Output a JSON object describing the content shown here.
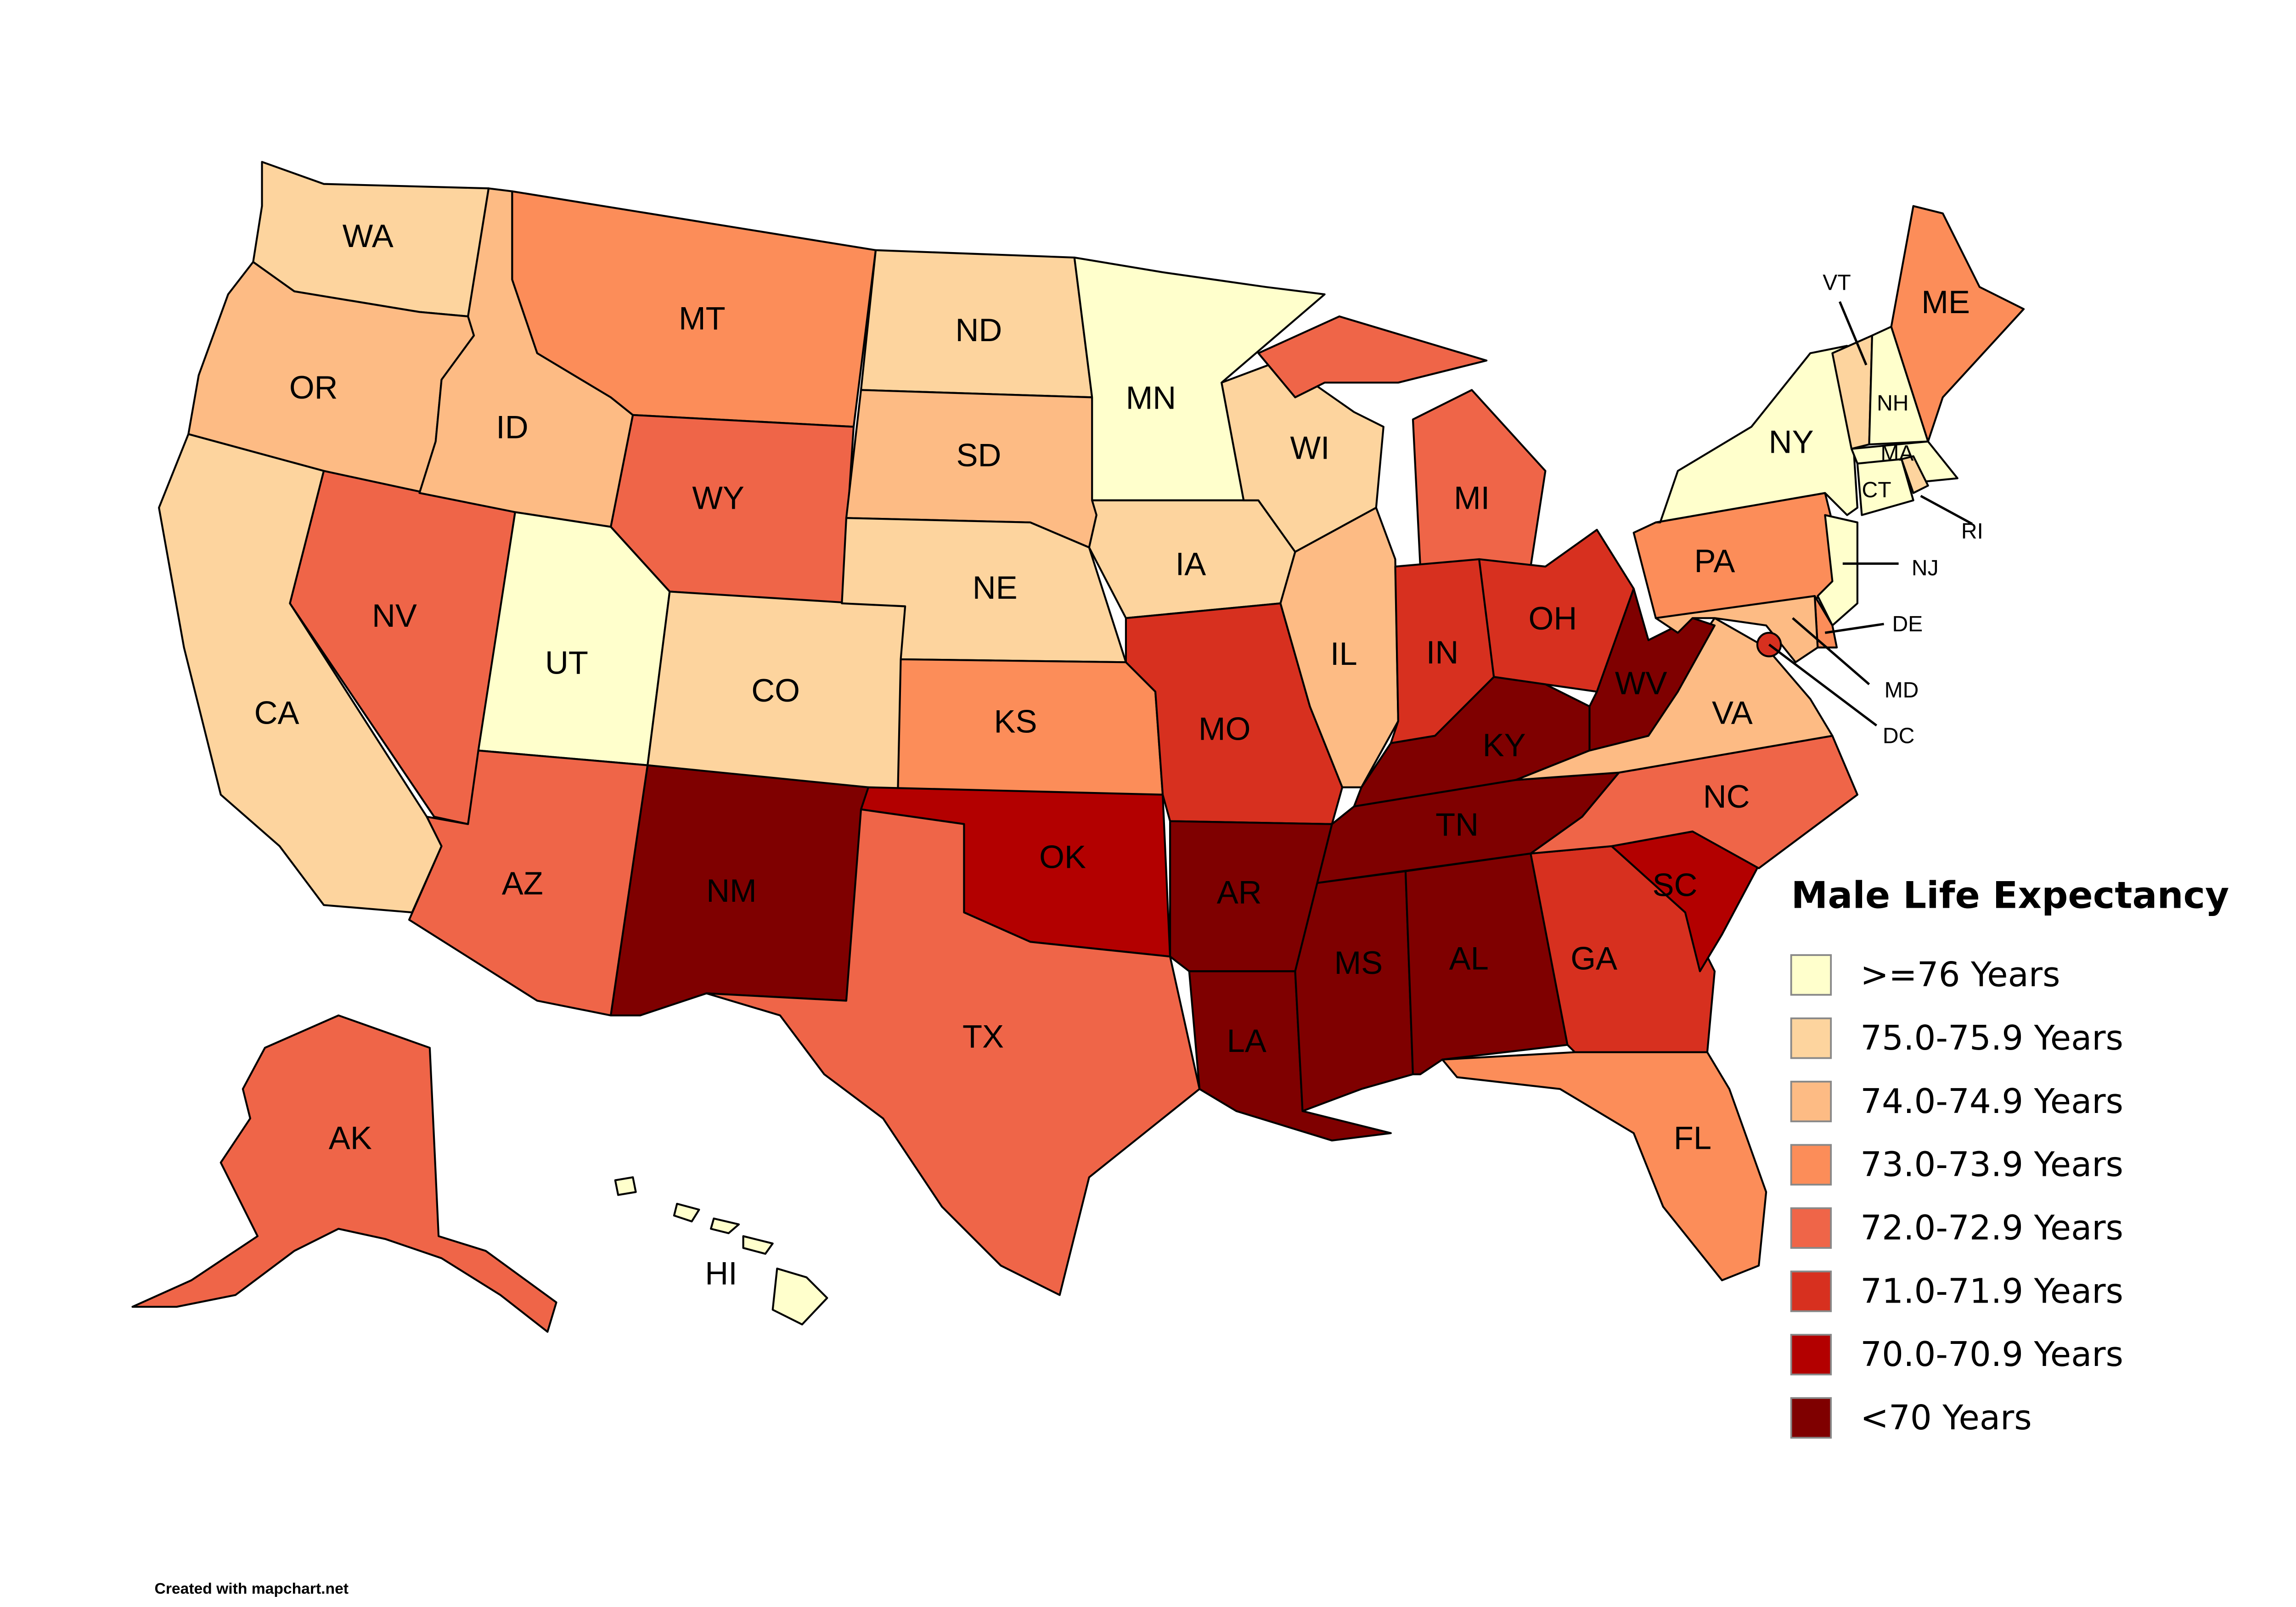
{
  "title": "Male Life Expectancy",
  "credit": "Created with mapchart.net",
  "legend": [
    {
      "label": ">=76 Years",
      "color": "#ffffcc"
    },
    {
      "label": "75.0-75.9 Years",
      "color": "#fdd49e"
    },
    {
      "label": "74.0-74.9 Years",
      "color": "#fdbb84"
    },
    {
      "label": "73.0-73.9 Years",
      "color": "#fc8d59"
    },
    {
      "label": "72.0-72.9 Years",
      "color": "#ef6548"
    },
    {
      "label": "71.0-71.9 Years",
      "color": "#d7301f"
    },
    {
      "label": "70.0-70.9 Years",
      "color": "#b30000"
    },
    {
      "label": "<70 Years",
      "color": "#7f0000"
    }
  ],
  "states": {
    "WA": {
      "label": "WA",
      "category": 1
    },
    "OR": {
      "label": "OR",
      "category": 2
    },
    "CA": {
      "label": "CA",
      "category": 1
    },
    "NV": {
      "label": "NV",
      "category": 4
    },
    "ID": {
      "label": "ID",
      "category": 2
    },
    "MT": {
      "label": "MT",
      "category": 3
    },
    "WY": {
      "label": "WY",
      "category": 4
    },
    "UT": {
      "label": "UT",
      "category": 0
    },
    "AZ": {
      "label": "AZ",
      "category": 4
    },
    "CO": {
      "label": "CO",
      "category": 1
    },
    "NM": {
      "label": "NM",
      "category": 7
    },
    "ND": {
      "label": "ND",
      "category": 1
    },
    "SD": {
      "label": "SD",
      "category": 2
    },
    "NE": {
      "label": "NE",
      "category": 1
    },
    "KS": {
      "label": "KS",
      "category": 3
    },
    "OK": {
      "label": "OK",
      "category": 6
    },
    "TX": {
      "label": "TX",
      "category": 4
    },
    "MN": {
      "label": "MN",
      "category": 0
    },
    "IA": {
      "label": "IA",
      "category": 1
    },
    "MO": {
      "label": "MO",
      "category": 5
    },
    "AR": {
      "label": "AR",
      "category": 7
    },
    "LA": {
      "label": "LA",
      "category": 7
    },
    "WI": {
      "label": "WI",
      "category": 1
    },
    "IL": {
      "label": "IL",
      "category": 2
    },
    "MI": {
      "label": "MI",
      "category": 4
    },
    "IN": {
      "label": "IN",
      "category": 5
    },
    "OH": {
      "label": "OH",
      "category": 5
    },
    "KY": {
      "label": "KY",
      "category": 7
    },
    "TN": {
      "label": "TN",
      "category": 7
    },
    "MS": {
      "label": "MS",
      "category": 7
    },
    "AL": {
      "label": "AL",
      "category": 7
    },
    "GA": {
      "label": "GA",
      "category": 5
    },
    "FL": {
      "label": "FL",
      "category": 3
    },
    "SC": {
      "label": "SC",
      "category": 6
    },
    "NC": {
      "label": "NC",
      "category": 4
    },
    "VA": {
      "label": "VA",
      "category": 2
    },
    "WV": {
      "label": "WV",
      "category": 7
    },
    "PA": {
      "label": "PA",
      "category": 3
    },
    "NY": {
      "label": "NY",
      "category": 0
    },
    "NJ": {
      "label": "NJ",
      "category": 0
    },
    "DE": {
      "label": "DE",
      "category": 3
    },
    "MD": {
      "label": "MD",
      "category": 2
    },
    "DC": {
      "label": "DC",
      "category": 5
    },
    "VT": {
      "label": "VT",
      "category": 1
    },
    "NH": {
      "label": "NH",
      "category": 0
    },
    "ME": {
      "label": "ME",
      "category": 3
    },
    "MA": {
      "label": "MA",
      "category": 0
    },
    "CT": {
      "label": "CT",
      "category": 0
    },
    "RI": {
      "label": "RI",
      "category": 1
    },
    "AK": {
      "label": "AK",
      "category": 4
    },
    "HI": {
      "label": "HI",
      "category": 0
    }
  }
}
